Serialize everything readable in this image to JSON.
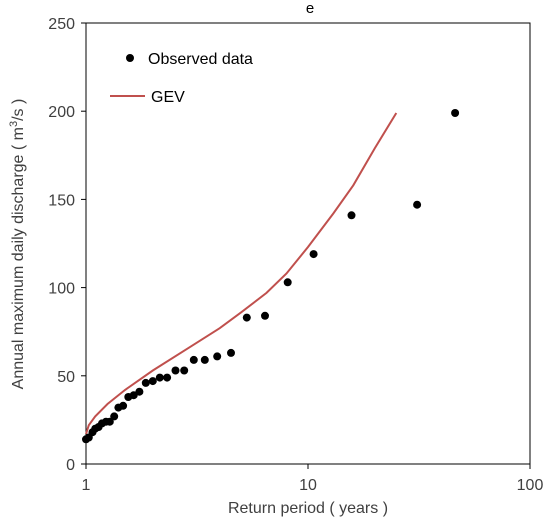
{
  "chart_data": {
    "type": "scatter",
    "title": "e",
    "xlabel": "Return period ( years )",
    "ylabel_prefix": "Annual maximum daily discharge ( m",
    "ylabel_sup": "3",
    "ylabel_suffix": "/s )",
    "x_scale": "log",
    "xlim": [
      1,
      100
    ],
    "ylim": [
      0,
      250
    ],
    "x_ticks": [
      1,
      10,
      100
    ],
    "y_ticks": [
      0,
      50,
      100,
      150,
      200,
      250
    ],
    "grid": false,
    "legend_position": "top-left",
    "series": [
      {
        "name": "Observed data",
        "kind": "scatter",
        "color": "#000000",
        "points": [
          [
            1.0,
            14
          ],
          [
            1.03,
            15
          ],
          [
            1.07,
            18
          ],
          [
            1.1,
            20
          ],
          [
            1.14,
            21
          ],
          [
            1.18,
            23
          ],
          [
            1.23,
            24
          ],
          [
            1.28,
            24
          ],
          [
            1.34,
            27
          ],
          [
            1.4,
            32
          ],
          [
            1.47,
            33
          ],
          [
            1.55,
            38
          ],
          [
            1.64,
            39
          ],
          [
            1.74,
            41
          ],
          [
            1.86,
            46
          ],
          [
            2.0,
            47
          ],
          [
            2.15,
            49
          ],
          [
            2.32,
            49
          ],
          [
            2.53,
            53
          ],
          [
            2.77,
            53
          ],
          [
            3.06,
            59
          ],
          [
            3.43,
            59
          ],
          [
            3.9,
            61
          ],
          [
            4.5,
            63
          ],
          [
            5.3,
            83
          ],
          [
            6.4,
            84
          ],
          [
            8.1,
            103
          ],
          [
            10.6,
            119
          ],
          [
            15.7,
            141
          ],
          [
            31.0,
            147
          ],
          [
            46.0,
            199
          ]
        ]
      },
      {
        "name": "GEV",
        "kind": "line",
        "color": "#c0504d",
        "points": [
          [
            1.0,
            17
          ],
          [
            1.03,
            22
          ],
          [
            1.1,
            27
          ],
          [
            1.25,
            34
          ],
          [
            1.5,
            42
          ],
          [
            2.0,
            53
          ],
          [
            3.0,
            67
          ],
          [
            4.0,
            77
          ],
          [
            5.0,
            86
          ],
          [
            6.5,
            97
          ],
          [
            8.0,
            108
          ],
          [
            10.0,
            123
          ],
          [
            13.0,
            142
          ],
          [
            16.0,
            158
          ],
          [
            20.0,
            179
          ],
          [
            25.0,
            199
          ]
        ]
      }
    ]
  }
}
